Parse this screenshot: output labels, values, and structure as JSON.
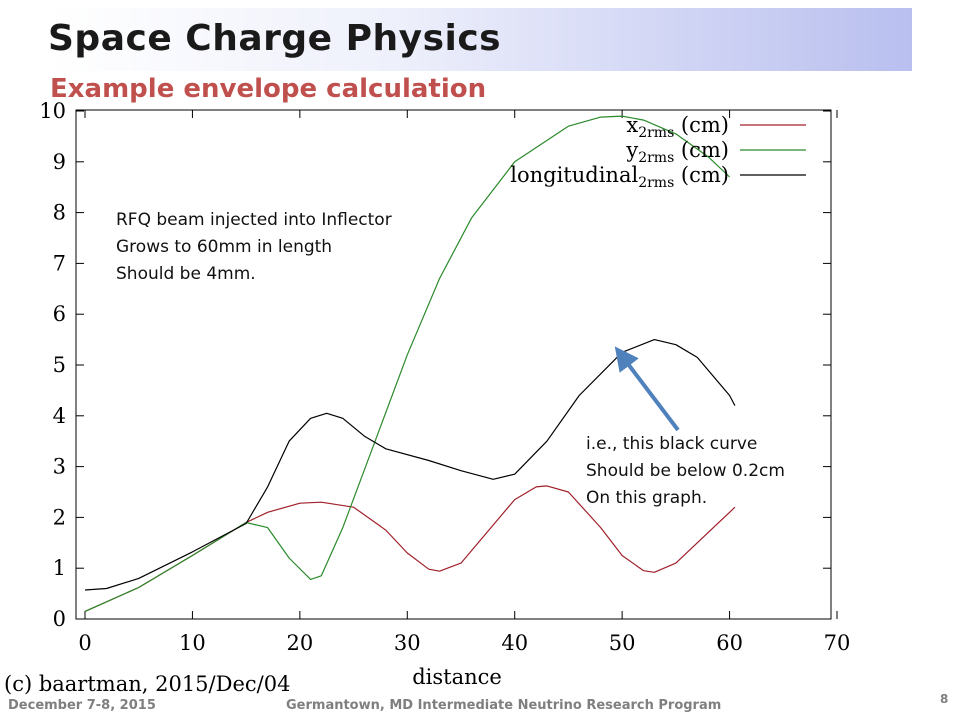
{
  "slide": {
    "title": "Space Charge Physics",
    "subtitle": "Example envelope calculation",
    "annotation_left": [
      "RFQ beam injected into Inflector",
      "Grows to 60mm in length",
      "Should be 4mm."
    ],
    "annotation_right": [
      "i.e., this black curve",
      "Should be below 0.2cm",
      "On this graph."
    ],
    "credit": "(c) baartman, 2015/Dec/04",
    "footer_date": "December 7-8, 2015",
    "footer_center": "Germantown, MD  Intermediate Neutrino Research Program",
    "page_number": "8",
    "colors": {
      "accent_title": "#c0504d",
      "arrow": "#4f81bd"
    }
  },
  "chart_data": {
    "type": "line",
    "xlabel": "distance",
    "ylabel": "",
    "xlim": [
      0,
      70
    ],
    "ylim": [
      0,
      10
    ],
    "xticks": [
      0,
      10,
      20,
      30,
      40,
      50,
      60,
      70
    ],
    "yticks": [
      0,
      1,
      2,
      3,
      4,
      5,
      6,
      7,
      8,
      9,
      10
    ],
    "grid": false,
    "legend_placement": "top-right",
    "series": [
      {
        "name": "x2rms (cm)",
        "legend_main": "x",
        "legend_sub": "2rms",
        "legend_unit": "(cm)",
        "color": "#a0202a",
        "x": [
          0,
          5,
          10,
          15,
          17,
          20,
          22,
          25,
          28,
          30,
          32,
          33,
          35,
          38,
          40,
          42,
          43,
          45,
          48,
          50,
          52,
          53,
          55,
          58,
          60,
          60.5
        ],
        "y": [
          0.15,
          0.62,
          1.25,
          1.9,
          2.1,
          2.28,
          2.3,
          2.2,
          1.75,
          1.3,
          0.98,
          0.94,
          1.1,
          1.85,
          2.35,
          2.6,
          2.62,
          2.5,
          1.8,
          1.25,
          0.95,
          0.92,
          1.1,
          1.7,
          2.1,
          2.2
        ]
      },
      {
        "name": "y2rms (cm)",
        "legend_main": "y",
        "legend_sub": "2rms",
        "legend_unit": "(cm)",
        "color": "#2a8a2a",
        "x": [
          0,
          5,
          10,
          15,
          17,
          19,
          21,
          22,
          24,
          27,
          30,
          33,
          36,
          40,
          45,
          48,
          50,
          52,
          55,
          58,
          60
        ],
        "y": [
          0.15,
          0.62,
          1.25,
          1.9,
          1.8,
          1.2,
          0.78,
          0.85,
          1.8,
          3.5,
          5.2,
          6.7,
          7.9,
          9.0,
          9.7,
          9.88,
          9.9,
          9.82,
          9.55,
          9.1,
          8.7
        ]
      },
      {
        "name": "longitudinal2rms (cm)",
        "legend_main": "longitudinal",
        "legend_sub": "2rms",
        "legend_unit": "(cm)",
        "color": "#000000",
        "x": [
          0,
          2,
          5,
          10,
          15,
          17,
          19,
          21,
          22.5,
          24,
          26,
          28,
          32,
          35,
          38,
          40,
          43,
          46,
          50,
          53,
          55,
          57,
          60,
          60.5
        ],
        "y": [
          0.57,
          0.6,
          0.8,
          1.32,
          1.88,
          2.6,
          3.5,
          3.95,
          4.05,
          3.95,
          3.6,
          3.35,
          3.12,
          2.92,
          2.75,
          2.85,
          3.5,
          4.4,
          5.25,
          5.5,
          5.4,
          5.15,
          4.4,
          4.2
        ]
      }
    ]
  }
}
